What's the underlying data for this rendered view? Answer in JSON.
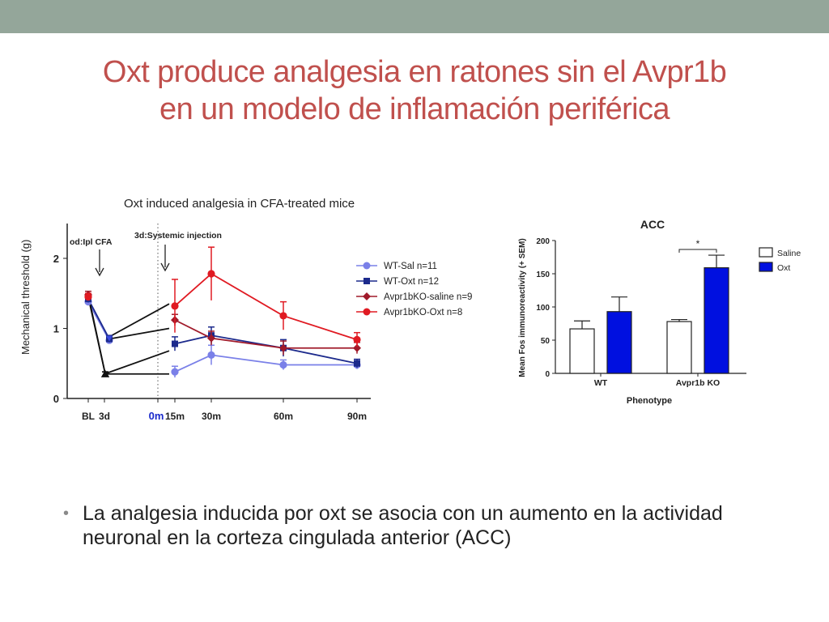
{
  "slide": {
    "title_line1": "Oxt produce analgesia en ratones sin el Avpr1b",
    "title_line2": "en un modelo de inflamación periférica",
    "bullet_text": "La analgesia inducida por oxt se asocia con un aumento en la actividad neuronal en la corteza cingulada anterior (ACC)"
  },
  "colors": {
    "topbar": "#94a69a",
    "title": "#c0504d"
  },
  "chart_data": [
    {
      "type": "line",
      "title": "Oxt induced analgesia in  CFA-treated mice",
      "ylabel": "Mechanical threshold (g)",
      "ylim": [
        0,
        2.5
      ],
      "yticks": [
        "0",
        "1",
        "2"
      ],
      "xticks": [
        "BL",
        "3d",
        "0m",
        "15m",
        "30m",
        "60m",
        "90m"
      ],
      "annotations": [
        "od:Ipl CFA",
        "3d:Systemic injection"
      ],
      "series": [
        {
          "name": "WT-Sal n=11",
          "color": "#7a80e8",
          "marker": "circle",
          "values": [
            1.38,
            0.83,
            null,
            0.38,
            0.62,
            0.48,
            0.48
          ],
          "errors": [
            0.05,
            0.05,
            null,
            0.08,
            0.14,
            0.07,
            0.06
          ]
        },
        {
          "name": "WT-Oxt n=12",
          "color": "#1c2a8c",
          "marker": "square",
          "values": [
            1.42,
            0.85,
            null,
            0.78,
            0.9,
            0.72,
            0.5
          ],
          "errors": [
            0.05,
            0.05,
            null,
            0.1,
            0.12,
            0.12,
            0.06
          ]
        },
        {
          "name": "Avpr1bKO-saline n=9",
          "color": "#a01a2a",
          "marker": "diamond",
          "values": [
            1.48,
            0.35,
            null,
            1.12,
            0.86,
            0.72,
            0.72
          ],
          "errors": [
            0.05,
            0.03,
            null,
            0.08,
            0.1,
            0.1,
            0.08
          ]
        },
        {
          "name": "Avpr1bKO-Oxt n=8",
          "color": "#e01a22",
          "marker": "circle",
          "values": [
            1.45,
            0.35,
            null,
            1.32,
            1.78,
            1.18,
            0.84
          ],
          "errors": [
            0.05,
            0.03,
            null,
            0.38,
            0.38,
            0.2,
            0.1
          ]
        }
      ]
    },
    {
      "type": "bar",
      "title": "ACC",
      "ylabel": "Mean Fos immunoreactivity (+ SEM)",
      "xlabel": "Phenotype",
      "ylim": [
        0,
        200
      ],
      "yticks": [
        "0",
        "50",
        "100",
        "150",
        "200"
      ],
      "categories": [
        "WT",
        "Avpr1b KO"
      ],
      "series": [
        {
          "name": "Saline",
          "color": "#ffffff",
          "values": [
            67,
            78
          ],
          "errors": [
            12,
            3
          ]
        },
        {
          "name": "Oxt",
          "color": "#0010e0",
          "values": [
            93,
            159
          ],
          "errors": [
            22,
            19
          ]
        }
      ],
      "significance": "*"
    }
  ]
}
